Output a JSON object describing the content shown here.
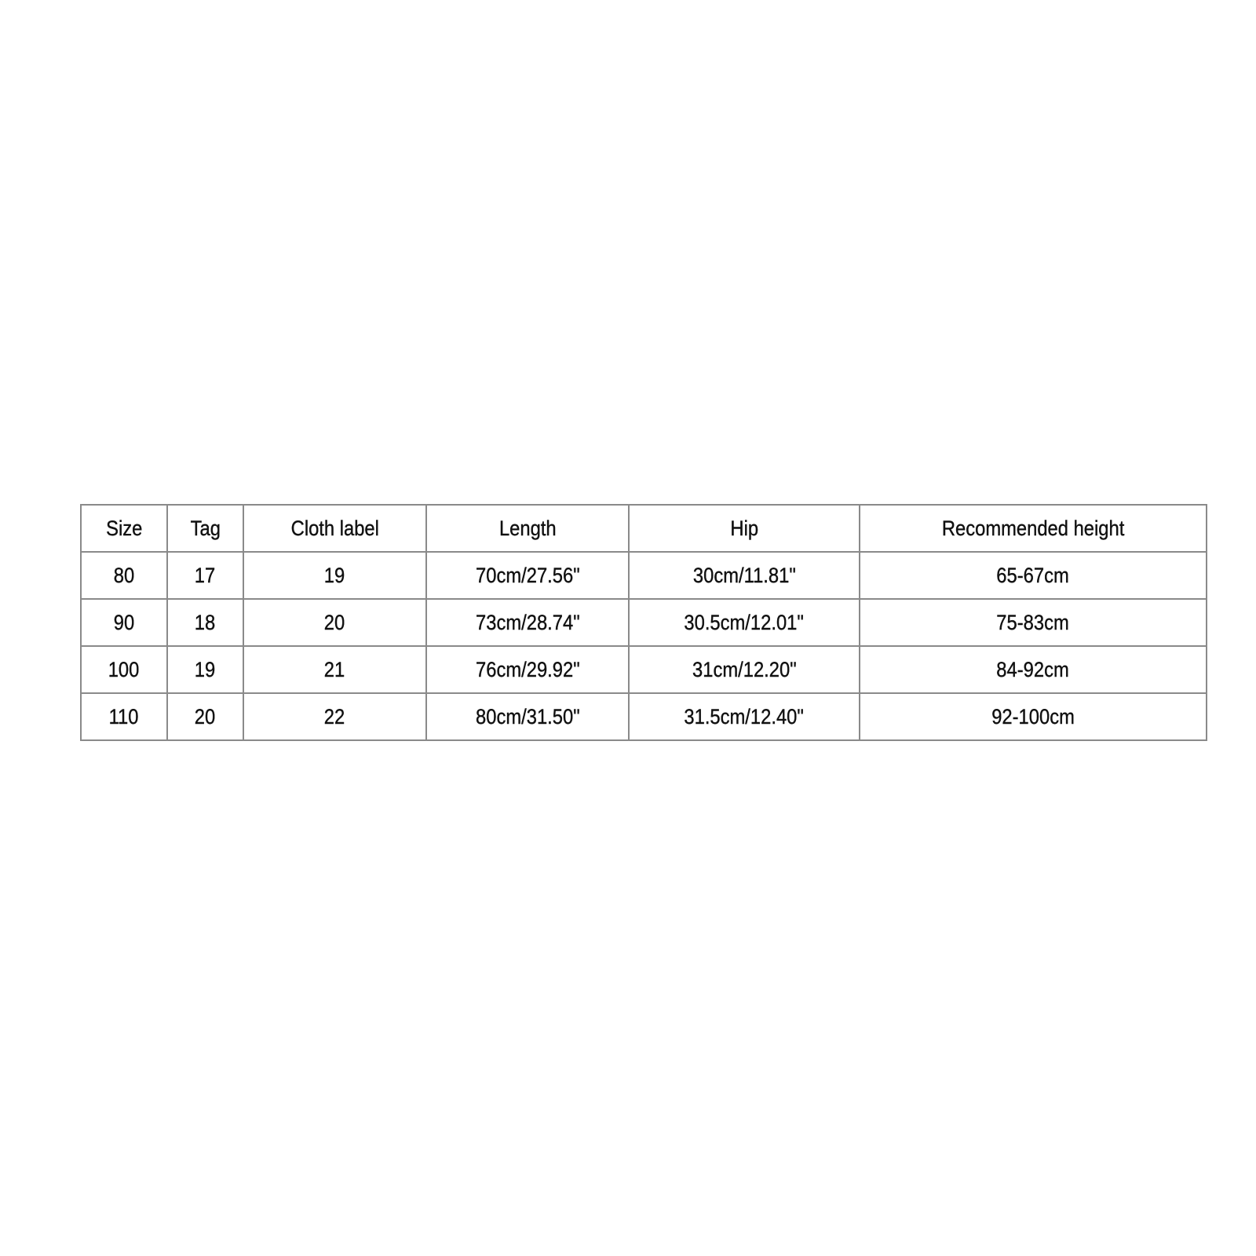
{
  "size_chart": {
    "headers": [
      "Size",
      "Tag",
      "Cloth label",
      "Length",
      "Hip",
      "Recommended height"
    ],
    "rows": [
      [
        "80",
        "17",
        "19",
        "70cm/27.56\"",
        "30cm/11.81\"",
        "65-67cm"
      ],
      [
        "90",
        "18",
        "20",
        "73cm/28.74\"",
        "30.5cm/12.01\"",
        "75-83cm"
      ],
      [
        "100",
        "19",
        "21",
        "76cm/29.92\"",
        "31cm/12.20\"",
        "84-92cm"
      ],
      [
        "110",
        "20",
        "22",
        "80cm/31.50\"",
        "31.5cm/12.40\"",
        "92-100cm"
      ]
    ]
  }
}
